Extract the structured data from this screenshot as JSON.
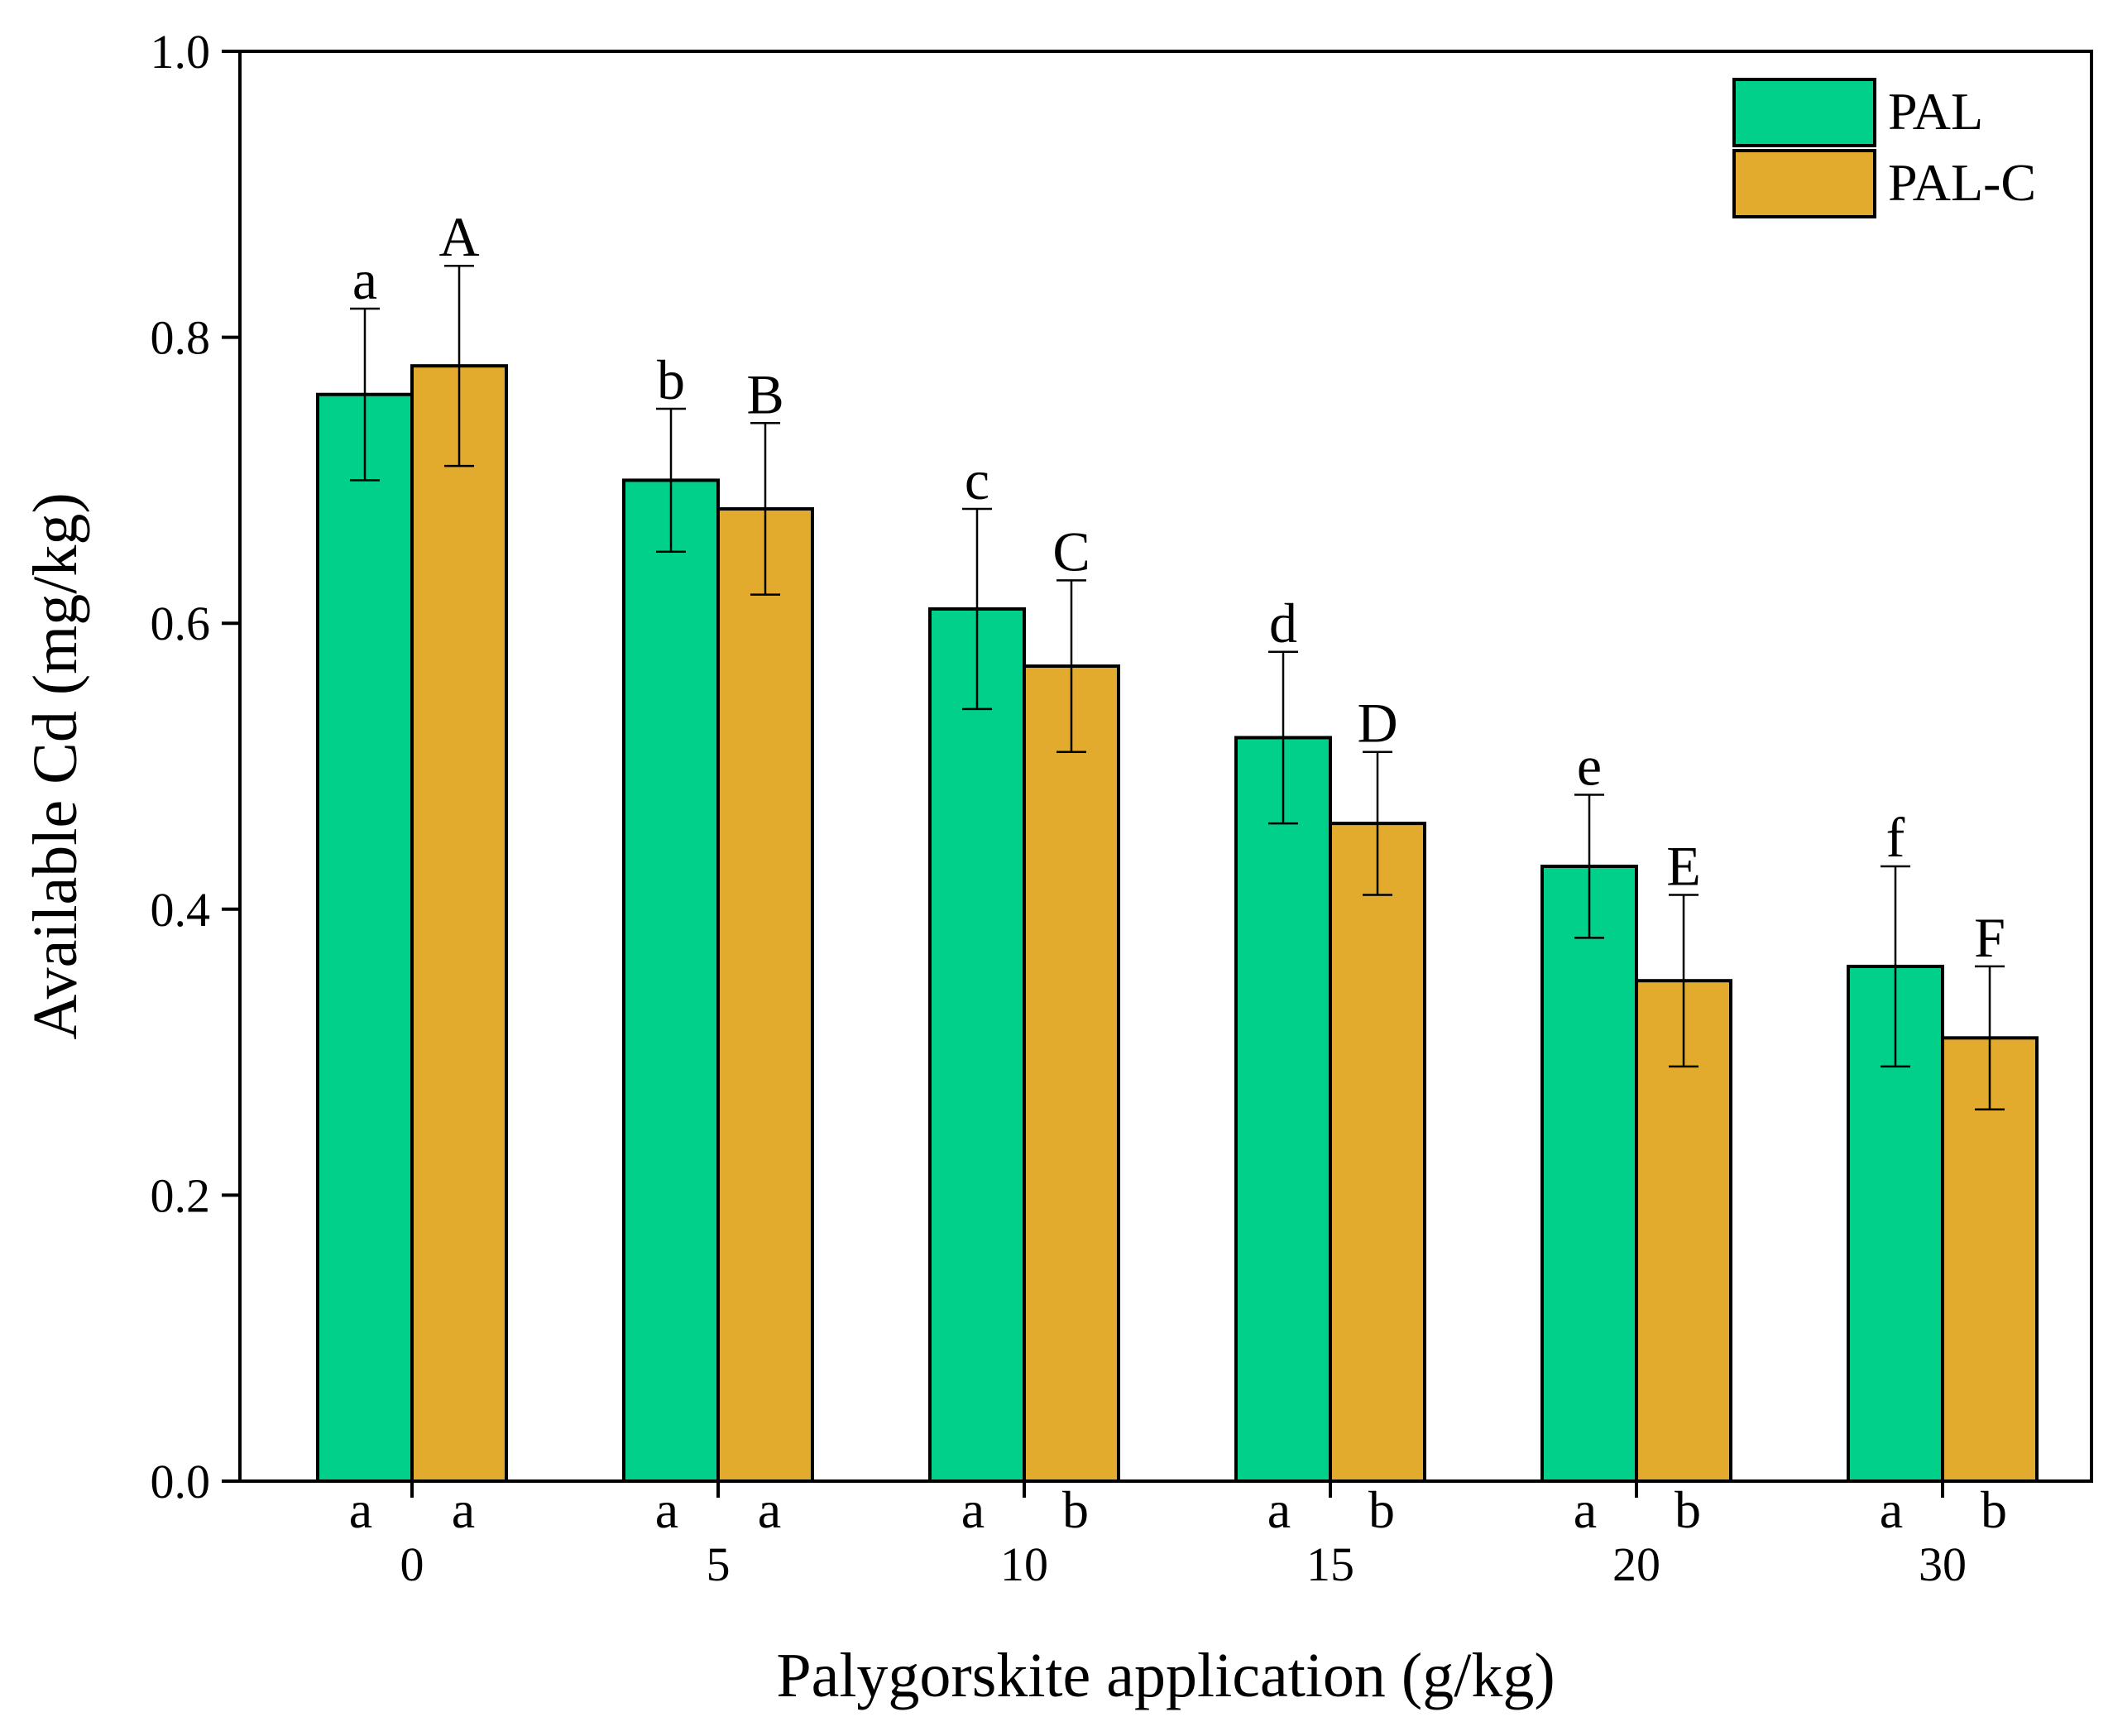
{
  "chart_data": {
    "type": "bar",
    "title": "",
    "xlabel": "Palygorskite application (g/kg)",
    "ylabel": "Available Cd (mg/kg)",
    "ylim": [
      0,
      1.0
    ],
    "yticks": [
      "0.0",
      "0.2",
      "0.4",
      "0.6",
      "0.8",
      "1.0"
    ],
    "categories": [
      "0",
      "5",
      "10",
      "15",
      "20",
      "30"
    ],
    "legend_position": "top-right",
    "series": [
      {
        "name": "PAL",
        "color": "#00d08a",
        "values": [
          0.76,
          0.7,
          0.61,
          0.52,
          0.43,
          0.36
        ],
        "errors": [
          0.06,
          0.05,
          0.07,
          0.06,
          0.05,
          0.07
        ],
        "letters": [
          "a",
          "b",
          "c",
          "d",
          "e",
          "f"
        ]
      },
      {
        "name": "PAL-C",
        "color": "#e2ab2e",
        "values": [
          0.78,
          0.68,
          0.57,
          0.46,
          0.35,
          0.31
        ],
        "errors": [
          0.07,
          0.06,
          0.06,
          0.05,
          0.06,
          0.05
        ],
        "letters": [
          "A",
          "B",
          "C",
          "D",
          "E",
          "F"
        ]
      }
    ],
    "pair_letters": [
      [
        "a",
        "a"
      ],
      [
        "a",
        "a"
      ],
      [
        "a",
        "b"
      ],
      [
        "a",
        "b"
      ],
      [
        "a",
        "b"
      ],
      [
        "a",
        "b"
      ]
    ]
  }
}
